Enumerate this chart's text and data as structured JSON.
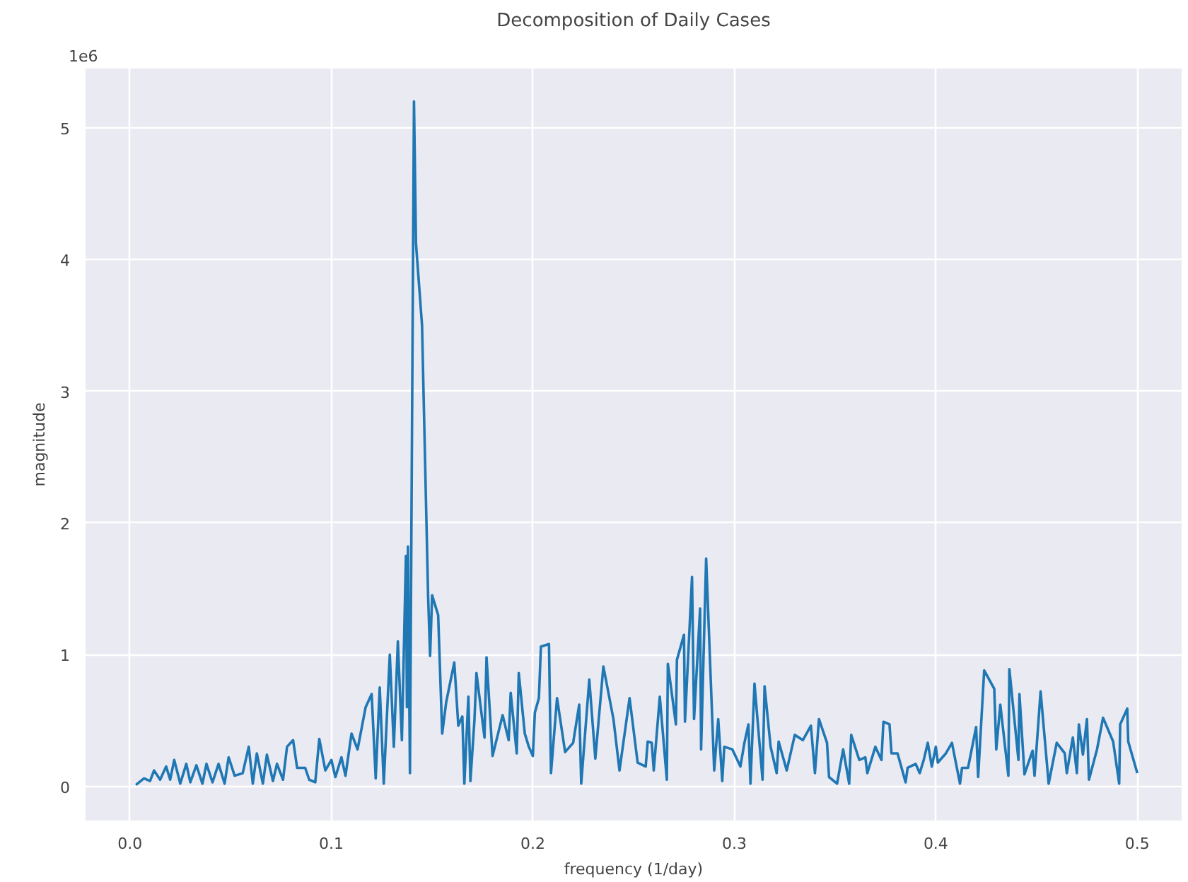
{
  "chart_data": {
    "type": "line",
    "title": "Decomposition of Daily Cases",
    "xlabel": "frequency (1/day)",
    "ylabel": "magnitude",
    "annotations": [
      "1e6"
    ],
    "xlim": [
      -0.022,
      0.522
    ],
    "ylim": [
      -0.26,
      5.45
    ],
    "xticks": [
      {
        "value": 0,
        "label": "0.0"
      },
      0.1,
      0.2,
      0.3,
      0.4,
      0.5
    ],
    "yticks": [
      0,
      1,
      2,
      3,
      4,
      5
    ],
    "grid": true,
    "line_style": "solid",
    "series": [
      {
        "color": "#1f77b4",
        "x": [
          0.003,
          0.007,
          0.01,
          0.012,
          0.015,
          0.018,
          0.02,
          0.022,
          0.025,
          0.028,
          0.03,
          0.033,
          0.036,
          0.038,
          0.041,
          0.044,
          0.047,
          0.049,
          0.052,
          0.056,
          0.059,
          0.061,
          0.063,
          0.066,
          0.068,
          0.071,
          0.073,
          0.076,
          0.078,
          0.081,
          0.083,
          0.087,
          0.089,
          0.092,
          0.094,
          0.097,
          0.1,
          0.102,
          0.105,
          0.107,
          0.11,
          0.113,
          0.117,
          0.12,
          0.122,
          0.124,
          0.126,
          0.129,
          0.131,
          0.133,
          0.135,
          0.137,
          0.1375,
          0.138,
          0.139,
          0.141,
          0.142,
          0.145,
          0.148,
          0.149,
          0.15,
          0.153,
          0.155,
          0.157,
          0.161,
          0.163,
          0.165,
          0.166,
          0.168,
          0.169,
          0.171,
          0.172,
          0.176,
          0.177,
          0.18,
          0.185,
          0.188,
          0.189,
          0.192,
          0.193,
          0.196,
          0.198,
          0.2,
          0.201,
          0.203,
          0.204,
          0.208,
          0.209,
          0.212,
          0.216,
          0.22,
          0.223,
          0.224,
          0.228,
          0.231,
          0.235,
          0.24,
          0.243,
          0.248,
          0.252,
          0.256,
          0.257,
          0.259,
          0.26,
          0.263,
          0.2665,
          0.267,
          0.271,
          0.2715,
          0.275,
          0.2755,
          0.279,
          0.28,
          0.283,
          0.2835,
          0.286,
          0.29,
          0.292,
          0.294,
          0.295,
          0.299,
          0.303,
          0.305,
          0.307,
          0.308,
          0.31,
          0.314,
          0.315,
          0.318,
          0.321,
          0.322,
          0.326,
          0.33,
          0.334,
          0.338,
          0.34,
          0.342,
          0.346,
          0.347,
          0.351,
          0.354,
          0.357,
          0.358,
          0.362,
          0.365,
          0.366,
          0.37,
          0.373,
          0.374,
          0.377,
          0.378,
          0.381,
          0.385,
          0.386,
          0.39,
          0.392,
          0.394,
          0.396,
          0.398,
          0.4,
          0.401,
          0.405,
          0.408,
          0.412,
          0.413,
          0.416,
          0.42,
          0.421,
          0.424,
          0.429,
          0.43,
          0.432,
          0.436,
          0.4365,
          0.441,
          0.4415,
          0.444,
          0.448,
          0.449,
          0.452,
          0.456,
          0.46,
          0.464,
          0.465,
          0.468,
          0.47,
          0.471,
          0.473,
          0.475,
          0.476,
          0.48,
          0.483,
          0.488,
          0.491,
          0.4915,
          0.495,
          0.4955,
          0.5
        ],
        "values": [
          0.01,
          0.06,
          0.04,
          0.12,
          0.05,
          0.15,
          0.05,
          0.2,
          0.02,
          0.17,
          0.03,
          0.16,
          0.02,
          0.17,
          0.03,
          0.17,
          0.02,
          0.22,
          0.08,
          0.1,
          0.3,
          0.02,
          0.25,
          0.02,
          0.24,
          0.04,
          0.17,
          0.05,
          0.3,
          0.35,
          0.14,
          0.14,
          0.05,
          0.03,
          0.36,
          0.12,
          0.2,
          0.07,
          0.22,
          0.08,
          0.4,
          0.28,
          0.6,
          0.7,
          0.06,
          0.75,
          0.02,
          1.0,
          0.3,
          1.1,
          0.35,
          1.75,
          0.6,
          1.82,
          0.1,
          5.2,
          4.12,
          3.5,
          1.45,
          0.99,
          1.45,
          1.3,
          0.4,
          0.64,
          0.94,
          0.46,
          0.53,
          0.02,
          0.68,
          0.04,
          0.5,
          0.86,
          0.37,
          0.98,
          0.23,
          0.54,
          0.35,
          0.71,
          0.25,
          0.86,
          0.4,
          0.3,
          0.23,
          0.56,
          0.67,
          1.06,
          1.08,
          0.1,
          0.67,
          0.26,
          0.33,
          0.62,
          0.02,
          0.81,
          0.21,
          0.91,
          0.51,
          0.12,
          0.67,
          0.18,
          0.15,
          0.34,
          0.33,
          0.12,
          0.68,
          0.05,
          0.93,
          0.47,
          0.96,
          1.15,
          0.49,
          1.59,
          0.51,
          1.35,
          0.28,
          1.73,
          0.12,
          0.51,
          0.04,
          0.3,
          0.28,
          0.15,
          0.33,
          0.47,
          0.02,
          0.78,
          0.05,
          0.76,
          0.3,
          0.1,
          0.34,
          0.12,
          0.39,
          0.35,
          0.46,
          0.1,
          0.51,
          0.33,
          0.07,
          0.02,
          0.28,
          0.02,
          0.39,
          0.2,
          0.22,
          0.1,
          0.3,
          0.2,
          0.49,
          0.47,
          0.25,
          0.25,
          0.03,
          0.14,
          0.17,
          0.1,
          0.2,
          0.33,
          0.15,
          0.3,
          0.18,
          0.25,
          0.33,
          0.02,
          0.14,
          0.14,
          0.45,
          0.07,
          0.88,
          0.74,
          0.28,
          0.62,
          0.08,
          0.89,
          0.2,
          0.7,
          0.09,
          0.27,
          0.08,
          0.72,
          0.02,
          0.33,
          0.25,
          0.1,
          0.37,
          0.1,
          0.47,
          0.24,
          0.51,
          0.05,
          0.28,
          0.52,
          0.34,
          0.02,
          0.47,
          0.59,
          0.34,
          0.1
        ]
      }
    ]
  }
}
